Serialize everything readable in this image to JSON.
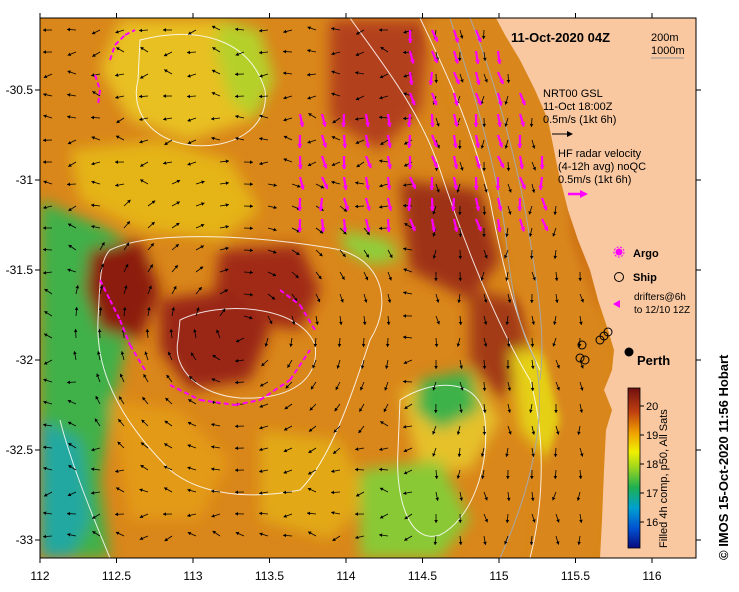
{
  "title": "11-Oct-2020 04Z",
  "contours": [
    "200m",
    "1000m"
  ],
  "model": {
    "name": "NRT00 GSL",
    "time": "11-Oct 18:00Z",
    "scale": "0.5m/s (1kt 6h)"
  },
  "radar": {
    "line1": "HF radar velocity",
    "line2": "(4-12h avg) noQC",
    "scale": "0.5m/s (1kt 6h)"
  },
  "legend": {
    "argo": "Argo",
    "ship": "Ship",
    "drifters1": "drifters@6h",
    "drifters2": "to 12/10 12Z"
  },
  "city": "Perth",
  "colorbar": {
    "label": "Filled 4h comp, p50, All Sats",
    "ticks": [
      "16",
      "17",
      "18",
      "19",
      "20"
    ]
  },
  "credit": "© IMOS 15-Oct-2020 11:56 Hobart",
  "axes": {
    "x_ticks": [
      "112",
      "112.5",
      "113",
      "113.5",
      "114",
      "114.5",
      "115",
      "115.5",
      "116"
    ],
    "y_ticks": [
      "-30.5",
      "-31",
      "-31.5",
      "-32",
      "-32.5",
      "-33"
    ]
  },
  "colors": {
    "land": "#f9c8a0",
    "radar_arrow": "#ff00ff",
    "contour": "#ffffff",
    "warm": "#8b1a10",
    "mid": "#e6a200",
    "cool": "#24b43c"
  }
}
